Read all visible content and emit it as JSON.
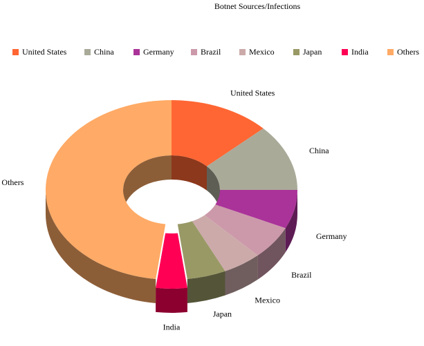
{
  "chart_data": {
    "type": "donut3d",
    "title": "Botnet Sources/Infections",
    "categories": [
      "United States",
      "China",
      "Germany",
      "Brazil",
      "Mexico",
      "Japan",
      "India",
      "Others"
    ],
    "values": [
      13,
      12,
      7,
      6,
      5,
      5,
      4,
      48
    ],
    "colors": [
      "#ff6633",
      "#aaaa99",
      "#aa3399",
      "#cc99aa",
      "#ccaaaa",
      "#999966",
      "#ff0055",
      "#ffaa66"
    ],
    "exploded": [
      "India"
    ],
    "legend": "top"
  }
}
